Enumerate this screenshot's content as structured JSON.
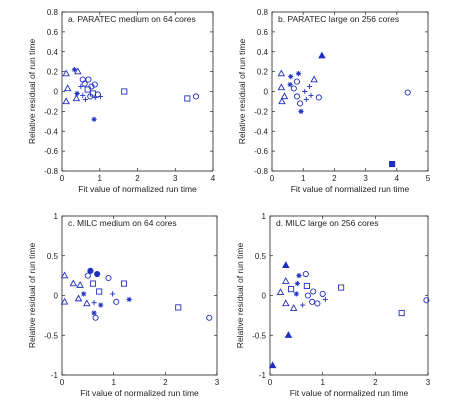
{
  "chart_data": [
    {
      "type": "scatter",
      "annotation": "a. PARATEC medium on 64 cores",
      "xlabel": "Fit value of normalized run time",
      "ylabel": "Relative residual of run time",
      "xlim": [
        0,
        4
      ],
      "ylim": [
        -0.8,
        0.8
      ],
      "xticks": [
        "0",
        "1",
        "2",
        "3",
        "4"
      ],
      "yticks": [
        "-0.8",
        "-0.6",
        "-0.4",
        "-0.2",
        "0",
        "0.2",
        "0.4",
        "0.6",
        "0.8"
      ],
      "color": "#1f2fbf",
      "points": [
        {
          "x": 0.11,
          "y": 0.18,
          "marker": "triangle"
        },
        {
          "x": 0.11,
          "y": -0.1,
          "marker": "triangle"
        },
        {
          "x": 0.15,
          "y": 0.03,
          "marker": "triangle"
        },
        {
          "x": 0.33,
          "y": 0.22,
          "marker": "star"
        },
        {
          "x": 0.42,
          "y": 0.2,
          "marker": "triangle"
        },
        {
          "x": 0.55,
          "y": 0.12,
          "marker": "circle"
        },
        {
          "x": 0.5,
          "y": 0.05,
          "marker": "plus"
        },
        {
          "x": 0.6,
          "y": 0.08,
          "marker": "circle"
        },
        {
          "x": 0.55,
          "y": -0.04,
          "marker": "plus"
        },
        {
          "x": 0.62,
          "y": -0.08,
          "marker": "plus"
        },
        {
          "x": 0.4,
          "y": -0.02,
          "marker": "star"
        },
        {
          "x": 0.38,
          "y": -0.07,
          "marker": "triangle"
        },
        {
          "x": 0.68,
          "y": 0.02,
          "marker": "square"
        },
        {
          "x": 0.7,
          "y": 0.12,
          "marker": "circle"
        },
        {
          "x": 0.75,
          "y": -0.05,
          "marker": "circle"
        },
        {
          "x": 0.78,
          "y": 0.05,
          "marker": "circle"
        },
        {
          "x": 0.82,
          "y": -0.02,
          "marker": "square"
        },
        {
          "x": 0.87,
          "y": 0.07,
          "marker": "circle"
        },
        {
          "x": 0.88,
          "y": -0.06,
          "marker": "plus"
        },
        {
          "x": 0.95,
          "y": -0.03,
          "marker": "circle"
        },
        {
          "x": 1.02,
          "y": -0.05,
          "marker": "plus"
        },
        {
          "x": 0.85,
          "y": -0.28,
          "marker": "star"
        },
        {
          "x": 1.65,
          "y": 0.0,
          "marker": "square"
        },
        {
          "x": 3.32,
          "y": -0.07,
          "marker": "square"
        },
        {
          "x": 3.55,
          "y": -0.05,
          "marker": "circle"
        }
      ]
    },
    {
      "type": "scatter",
      "annotation": "b. PARATEC large on 256 cores",
      "xlabel": "Fit value of normalized run time",
      "ylabel": "Relative residual of run time",
      "xlim": [
        0,
        5
      ],
      "ylim": [
        -0.8,
        0.8
      ],
      "xticks": [
        "0",
        "1",
        "2",
        "3",
        "4",
        "5"
      ],
      "yticks": [
        "-0.8",
        "-0.6",
        "-0.4",
        "-0.2",
        "0",
        "0.2",
        "0.4",
        "0.6",
        "0.8"
      ],
      "color": "#1f2fbf",
      "points": [
        {
          "x": 0.3,
          "y": 0.18,
          "marker": "triangle"
        },
        {
          "x": 0.3,
          "y": 0.04,
          "marker": "triangle"
        },
        {
          "x": 0.32,
          "y": -0.1,
          "marker": "triangle"
        },
        {
          "x": 0.4,
          "y": -0.05,
          "marker": "triangle"
        },
        {
          "x": 0.6,
          "y": 0.15,
          "marker": "star"
        },
        {
          "x": 0.58,
          "y": 0.07,
          "marker": "star"
        },
        {
          "x": 0.85,
          "y": 0.18,
          "marker": "star"
        },
        {
          "x": 0.7,
          "y": 0.03,
          "marker": "circle"
        },
        {
          "x": 0.8,
          "y": 0.1,
          "marker": "circle"
        },
        {
          "x": 0.8,
          "y": -0.05,
          "marker": "circle"
        },
        {
          "x": 0.9,
          "y": -0.12,
          "marker": "circle"
        },
        {
          "x": 0.93,
          "y": -0.2,
          "marker": "star"
        },
        {
          "x": 1.05,
          "y": 0.0,
          "marker": "plus"
        },
        {
          "x": 1.1,
          "y": -0.08,
          "marker": "plus"
        },
        {
          "x": 1.2,
          "y": 0.05,
          "marker": "plus"
        },
        {
          "x": 1.25,
          "y": -0.04,
          "marker": "plus"
        },
        {
          "x": 1.35,
          "y": 0.12,
          "marker": "triangle"
        },
        {
          "x": 1.5,
          "y": -0.06,
          "marker": "circle"
        },
        {
          "x": 1.6,
          "y": 0.36,
          "marker": "triangle-filled"
        },
        {
          "x": 4.35,
          "y": -0.01,
          "marker": "circle"
        },
        {
          "x": 3.85,
          "y": -0.73,
          "marker": "square-filled"
        }
      ]
    },
    {
      "type": "scatter",
      "annotation": "c. MILC medium on 64 cores",
      "xlabel": "Fit value of normalized run time",
      "ylabel": "Relative residual of run time",
      "xlim": [
        0,
        3
      ],
      "ylim": [
        -1,
        1
      ],
      "xticks": [
        "0",
        "1",
        "2",
        "3"
      ],
      "yticks": [
        "-1",
        "-0.5",
        "0",
        "0.5",
        "1"
      ],
      "color": "#1f2fbf",
      "points": [
        {
          "x": 0.05,
          "y": 0.25,
          "marker": "triangle"
        },
        {
          "x": 0.22,
          "y": 0.15,
          "marker": "triangle"
        },
        {
          "x": 0.35,
          "y": 0.13,
          "marker": "triangle"
        },
        {
          "x": 0.32,
          "y": -0.04,
          "marker": "triangle"
        },
        {
          "x": 0.05,
          "y": -0.08,
          "marker": "triangle"
        },
        {
          "x": 0.42,
          "y": 0.02,
          "marker": "star"
        },
        {
          "x": 0.48,
          "y": -0.1,
          "marker": "triangle"
        },
        {
          "x": 0.5,
          "y": 0.25,
          "marker": "circle"
        },
        {
          "x": 0.55,
          "y": 0.31,
          "marker": "circle-filled"
        },
        {
          "x": 0.6,
          "y": 0.15,
          "marker": "square"
        },
        {
          "x": 0.62,
          "y": -0.09,
          "marker": "plus"
        },
        {
          "x": 0.62,
          "y": -0.22,
          "marker": "star"
        },
        {
          "x": 0.68,
          "y": 0.27,
          "marker": "circle-filled"
        },
        {
          "x": 0.72,
          "y": 0.05,
          "marker": "square"
        },
        {
          "x": 0.75,
          "y": -0.12,
          "marker": "star"
        },
        {
          "x": 0.65,
          "y": -0.28,
          "marker": "circle"
        },
        {
          "x": 0.9,
          "y": 0.22,
          "marker": "circle"
        },
        {
          "x": 0.98,
          "y": 0.02,
          "marker": "plus"
        },
        {
          "x": 1.05,
          "y": -0.08,
          "marker": "circle"
        },
        {
          "x": 1.2,
          "y": 0.15,
          "marker": "square"
        },
        {
          "x": 1.3,
          "y": -0.05,
          "marker": "star"
        },
        {
          "x": 2.25,
          "y": -0.15,
          "marker": "square"
        },
        {
          "x": 2.85,
          "y": -0.28,
          "marker": "circle"
        }
      ]
    },
    {
      "type": "scatter",
      "annotation": "d. MILC large on 256 cores",
      "xlabel": "Fit value of normalized run time",
      "ylabel": "Relative residual of run time",
      "xlim": [
        0,
        3
      ],
      "ylim": [
        -1,
        1
      ],
      "xticks": [
        "0",
        "1",
        "2",
        "3"
      ],
      "yticks": [
        "-1",
        "-0.5",
        "0",
        "0.5",
        "1"
      ],
      "color": "#1f2fbf",
      "points": [
        {
          "x": 0.3,
          "y": 0.38,
          "marker": "triangle-filled"
        },
        {
          "x": 0.3,
          "y": 0.18,
          "marker": "triangle"
        },
        {
          "x": 0.2,
          "y": 0.04,
          "marker": "triangle"
        },
        {
          "x": 0.3,
          "y": -0.1,
          "marker": "triangle"
        },
        {
          "x": 0.4,
          "y": 0.08,
          "marker": "square"
        },
        {
          "x": 0.45,
          "y": -0.16,
          "marker": "triangle"
        },
        {
          "x": 0.5,
          "y": 0.02,
          "marker": "star"
        },
        {
          "x": 0.52,
          "y": 0.15,
          "marker": "star"
        },
        {
          "x": 0.55,
          "y": 0.25,
          "marker": "star"
        },
        {
          "x": 0.62,
          "y": -0.12,
          "marker": "plus"
        },
        {
          "x": 0.68,
          "y": 0.27,
          "marker": "circle"
        },
        {
          "x": 0.7,
          "y": 0.12,
          "marker": "square"
        },
        {
          "x": 0.72,
          "y": 0.0,
          "marker": "circle"
        },
        {
          "x": 0.8,
          "y": -0.08,
          "marker": "circle"
        },
        {
          "x": 0.82,
          "y": 0.05,
          "marker": "circle"
        },
        {
          "x": 0.9,
          "y": -0.1,
          "marker": "circle"
        },
        {
          "x": 1.0,
          "y": 0.02,
          "marker": "circle"
        },
        {
          "x": 1.05,
          "y": -0.05,
          "marker": "plus"
        },
        {
          "x": 1.35,
          "y": 0.1,
          "marker": "square"
        },
        {
          "x": 0.35,
          "y": -0.5,
          "marker": "triangle-filled"
        },
        {
          "x": 0.05,
          "y": -0.88,
          "marker": "triangle-filled"
        },
        {
          "x": 2.5,
          "y": -0.22,
          "marker": "square"
        },
        {
          "x": 2.97,
          "y": -0.06,
          "marker": "circle"
        }
      ]
    }
  ]
}
